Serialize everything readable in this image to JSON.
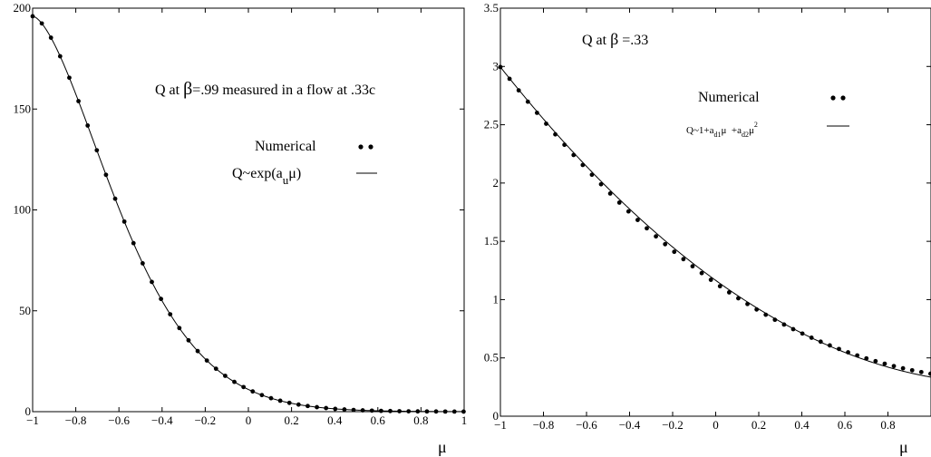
{
  "chart_data": [
    {
      "type": "scatter",
      "title": "",
      "xlabel": "μ",
      "ylabel": "",
      "xlim": [
        -1,
        1
      ],
      "ylim": [
        0,
        200
      ],
      "grid": false,
      "x_ticks": [
        -1,
        -0.8,
        -0.6,
        -0.4,
        -0.2,
        0,
        0.2,
        0.4,
        0.6,
        0.8,
        1
      ],
      "x_tick_labels": [
        "−1",
        "−0.8",
        "−0.6",
        "−0.4",
        "−0.2",
        "0",
        "0.2",
        "0.4",
        "0.6",
        "0.8",
        "1"
      ],
      "y_ticks": [
        0,
        50,
        100,
        150,
        200
      ],
      "y_tick_labels": [
        "0",
        "50",
        "100",
        "150",
        "200"
      ],
      "annotation": {
        "prefix": "Q at ",
        "beta": "β",
        "suffix": "=.99 measured in a flow at .33c"
      },
      "legend_position": "right",
      "legend": {
        "numerical_label": "Numerical",
        "fit_label_parts": {
          "a": "Q~exp(a",
          "b": "u",
          "c": "μ)"
        }
      },
      "fit": {
        "form": "exp",
        "coeff_min": 196,
        "coeff_fall": 2.88,
        "coeff_shape": 1.6
      },
      "series": [
        {
          "name": "Numerical",
          "style": "dots",
          "x_step": 0.0425,
          "count": 48
        },
        {
          "name": "Q~exp(a u μ)",
          "style": "line",
          "x_step": 0.005
        }
      ]
    },
    {
      "type": "scatter",
      "title": "",
      "xlabel": "μ",
      "ylabel": "",
      "xlim": [
        -1,
        1
      ],
      "ylim": [
        0,
        3.5
      ],
      "grid": false,
      "x_ticks": [
        -1,
        -0.8,
        -0.6,
        -0.4,
        -0.2,
        0,
        0.2,
        0.4,
        0.6,
        0.8
      ],
      "x_tick_labels": [
        "−1",
        "−0.8",
        "−0.6",
        "−0.4",
        "−0.2",
        "0",
        "0.2",
        "0.4",
        "0.6",
        "0.8"
      ],
      "y_ticks": [
        0,
        0.5,
        1,
        1.5,
        2,
        2.5,
        3,
        3.5
      ],
      "y_tick_labels": [
        "0",
        "0.5",
        "1",
        "1.5",
        "2",
        "2.5",
        "3",
        "3.5"
      ],
      "annotation": {
        "prefix": "Q at ",
        "beta": "β",
        "suffix": " =.33"
      },
      "legend_position": "right",
      "legend": {
        "numerical_label": "Numerical",
        "fit_label_parts": {
          "a": "Q~1+a",
          "b": "d1",
          "c": "μ  +a",
          "d": "d2",
          "e": "μ",
          "f": "2"
        }
      },
      "fit": {
        "form": "quadratic",
        "a0": 1.165,
        "a1": -1.33,
        "a2": 0.5
      },
      "series": [
        {
          "name": "Numerical",
          "style": "dots",
          "x_step": 0.0425,
          "count": 48
        },
        {
          "name": "Q~1+a d1 μ +a d2 μ²",
          "style": "line",
          "x_step": 0.005
        }
      ]
    }
  ]
}
